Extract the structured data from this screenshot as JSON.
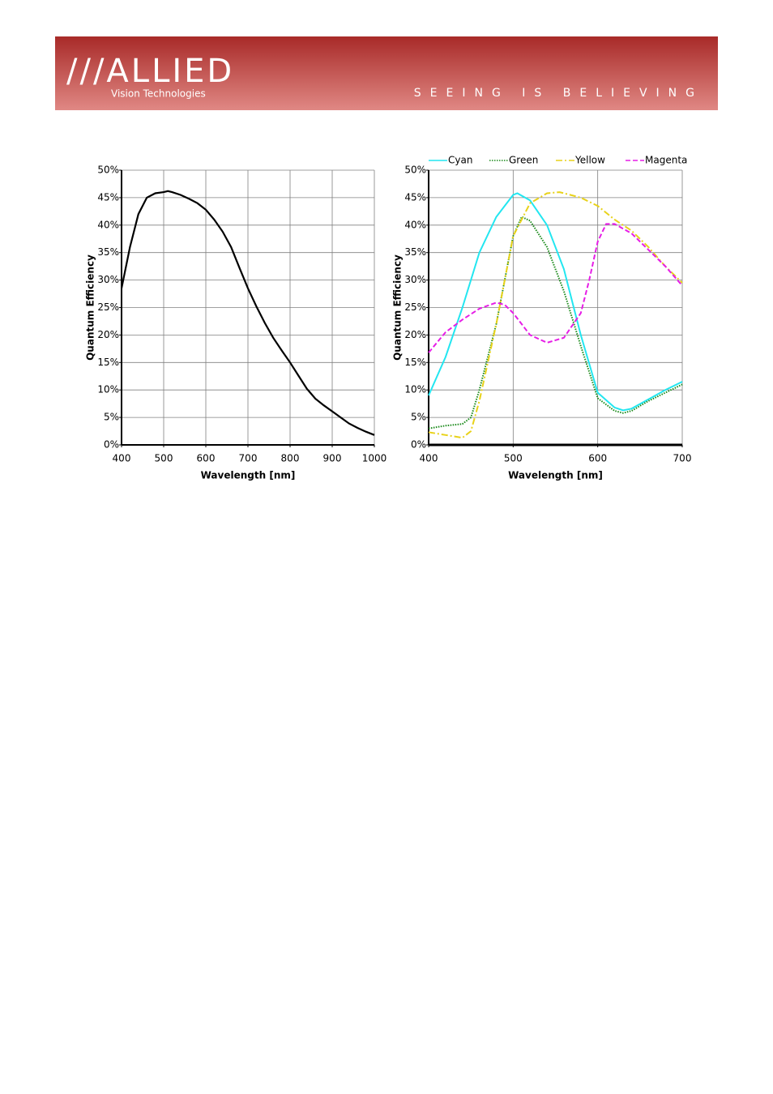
{
  "header": {
    "brand": "///ALLIED",
    "subbrand": "Vision Technologies",
    "tagline": "SEEING IS BELIEVING"
  },
  "chart_data": [
    {
      "type": "line",
      "xlabel": "Wavelength [nm]",
      "ylabel": "Quantum Efficiency",
      "grid": true,
      "color": "#000000",
      "x": [
        400,
        420,
        440,
        460,
        480,
        500,
        510,
        520,
        540,
        560,
        580,
        600,
        620,
        640,
        660,
        680,
        700,
        720,
        740,
        760,
        780,
        800,
        820,
        840,
        860,
        880,
        900,
        920,
        940,
        960,
        980,
        1000
      ],
      "values": [
        28.5,
        36,
        42,
        45,
        45.8,
        46,
        46.2,
        46,
        45.5,
        44.8,
        44,
        42.8,
        41,
        38.8,
        36,
        32.2,
        28.5,
        25.2,
        22.2,
        19.5,
        17.2,
        15,
        12.6,
        10.2,
        8.4,
        7.2,
        6.1,
        5,
        3.9,
        3.1,
        2.4,
        1.8
      ],
      "xlim": [
        400,
        1000
      ],
      "xticks": [
        400,
        500,
        600,
        700,
        800,
        900,
        1000
      ],
      "ylim": [
        0,
        50
      ],
      "yticks": [
        {
          "value": 0,
          "label": "0%"
        },
        {
          "value": 5,
          "label": "5%"
        },
        {
          "value": 10,
          "label": "10%"
        },
        {
          "value": 15,
          "label": "15%"
        },
        {
          "value": 20,
          "label": "20%"
        },
        {
          "value": 25,
          "label": "25%"
        },
        {
          "value": 30,
          "label": "30%"
        },
        {
          "value": 35,
          "label": "35%"
        },
        {
          "value": 40,
          "label": "40%"
        },
        {
          "value": 45,
          "label": "45%"
        },
        {
          "value": 50,
          "label": "50%"
        }
      ]
    },
    {
      "type": "line",
      "xlabel": "Wavelength [nm]",
      "ylabel": "Quantum Efficiency",
      "grid": true,
      "legend": "top",
      "series": [
        {
          "name": "Cyan",
          "color": "#22e6f0",
          "dash": "solid",
          "x": [
            400,
            420,
            440,
            460,
            480,
            500,
            505,
            520,
            540,
            560,
            580,
            600,
            620,
            630,
            640,
            660,
            680,
            700
          ],
          "values": [
            9,
            16,
            25,
            35,
            41.5,
            45.5,
            45.8,
            44.5,
            40,
            32,
            20,
            9.5,
            6.8,
            6.3,
            6.6,
            8.3,
            10,
            11.5
          ]
        },
        {
          "name": "Green",
          "color": "#1a8a1a",
          "dash": "dotted",
          "x": [
            400,
            420,
            440,
            450,
            460,
            480,
            500,
            510,
            520,
            540,
            560,
            580,
            600,
            620,
            630,
            640,
            660,
            680,
            700
          ],
          "values": [
            3,
            3.5,
            3.8,
            5,
            10,
            22,
            38,
            41.5,
            40.8,
            36,
            28,
            18,
            8.5,
            6.2,
            5.8,
            6.2,
            8,
            9.5,
            11
          ]
        },
        {
          "name": "Yellow",
          "color": "#e8d21a",
          "dash": "dashdot",
          "x": [
            400,
            420,
            440,
            450,
            460,
            480,
            500,
            520,
            540,
            555,
            580,
            600,
            620,
            640,
            660,
            680,
            700
          ],
          "values": [
            2.3,
            1.8,
            1.3,
            2.5,
            8,
            22,
            38,
            44,
            45.8,
            46,
            45,
            43.5,
            41,
            39,
            36,
            32.5,
            29.5
          ]
        },
        {
          "name": "Magenta",
          "color": "#e61ee6",
          "dash": "dashed",
          "x": [
            400,
            420,
            440,
            460,
            480,
            490,
            500,
            520,
            540,
            560,
            580,
            590,
            600,
            610,
            620,
            640,
            660,
            680,
            700
          ],
          "values": [
            16.8,
            20.5,
            22.8,
            24.8,
            25.9,
            25.5,
            24,
            20,
            18.6,
            19.5,
            24,
            30,
            37,
            40.2,
            40.2,
            38.5,
            35.5,
            32.5,
            29
          ]
        }
      ],
      "xlim": [
        400,
        700
      ],
      "xticks": [
        400,
        500,
        600,
        700
      ],
      "ylim": [
        0,
        50
      ],
      "yticks": [
        {
          "value": 0,
          "label": "0%"
        },
        {
          "value": 5,
          "label": "5%"
        },
        {
          "value": 10,
          "label": "10%"
        },
        {
          "value": 15,
          "label": "15%"
        },
        {
          "value": 20,
          "label": "20%"
        },
        {
          "value": 25,
          "label": "25%"
        },
        {
          "value": 30,
          "label": "30%"
        },
        {
          "value": 35,
          "label": "35%"
        },
        {
          "value": 40,
          "label": "40%"
        },
        {
          "value": 45,
          "label": "45%"
        },
        {
          "value": 50,
          "label": "50%"
        }
      ]
    }
  ]
}
